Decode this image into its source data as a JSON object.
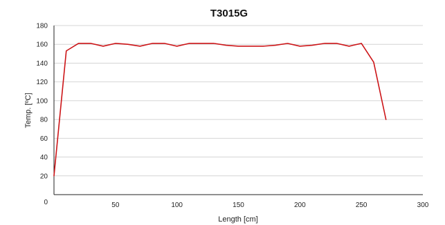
{
  "chart_data": {
    "type": "line",
    "title": "T3015G",
    "xlabel": "Length [cm]",
    "ylabel": "Temp. [ºC]",
    "xlim": [
      0,
      300
    ],
    "ylim": [
      0,
      180
    ],
    "xticks": [
      0,
      50,
      100,
      150,
      200,
      250,
      300
    ],
    "yticks": [
      20,
      40,
      60,
      80,
      100,
      120,
      140,
      160,
      180
    ],
    "grid": "horizontal",
    "legend": "none",
    "series": [
      {
        "color": "#cc1417",
        "x": [
          0,
          10,
          20,
          30,
          40,
          50,
          60,
          70,
          80,
          90,
          100,
          110,
          120,
          130,
          140,
          150,
          160,
          170,
          180,
          190,
          200,
          210,
          220,
          230,
          240,
          250,
          260,
          270
        ],
        "y": [
          20,
          153,
          161,
          161,
          158,
          161,
          160,
          158,
          161,
          161,
          158,
          161,
          161,
          161,
          159,
          158,
          158,
          158,
          159,
          161,
          158,
          159,
          161,
          161,
          158,
          161,
          141,
          80
        ]
      }
    ]
  }
}
